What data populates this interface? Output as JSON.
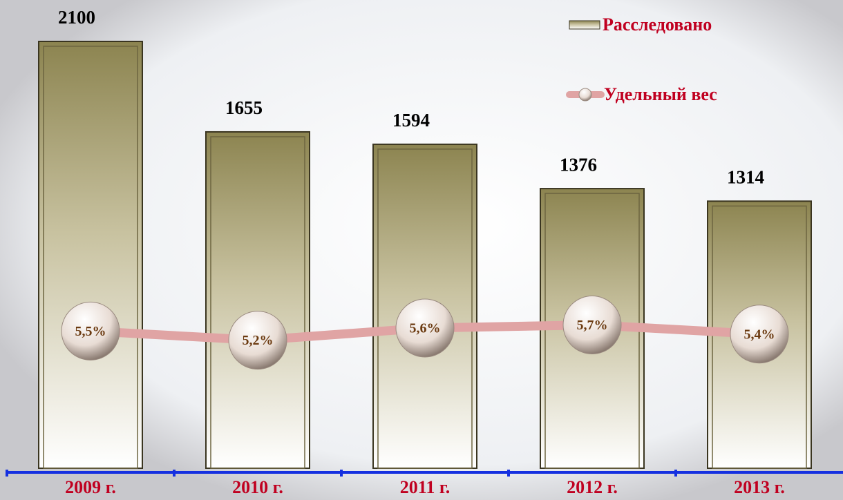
{
  "chart_data": {
    "type": "bar",
    "categories": [
      "2009 г.",
      "2010 г.",
      "2011 г.",
      "2012 г.",
      "2013 г."
    ],
    "series": [
      {
        "name": "Расследовано",
        "type": "bar",
        "color": "#8c8450",
        "values": [
          2100,
          1655,
          1594,
          1376,
          1314
        ]
      },
      {
        "name": "Удельный вес",
        "type": "line",
        "axis": "y2",
        "color": "#e0a4a4",
        "values": [
          5.5,
          5.2,
          5.6,
          5.7,
          5.4
        ],
        "value_labels": [
          "5,5%",
          "5,2%",
          "5,6%",
          "5,7%",
          "5,4%"
        ]
      }
    ],
    "ylim": [
      0,
      2100
    ],
    "y2lim": [
      1,
      15
    ],
    "legend": "top-right"
  }
}
